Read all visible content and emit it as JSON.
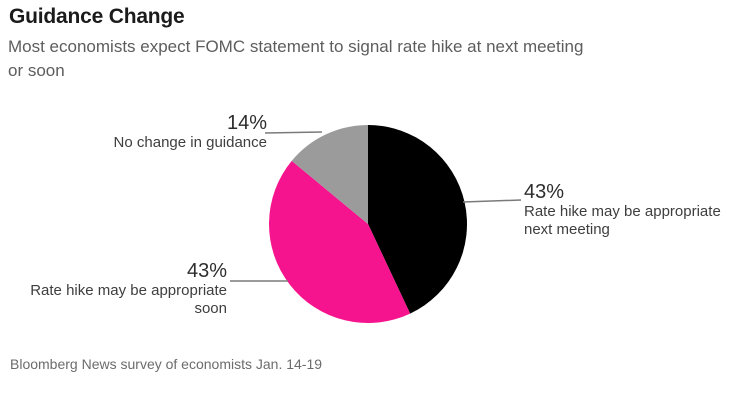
{
  "header": {
    "title": "Guidance Change",
    "subtitle_lines": [
      "Most economists expect FOMC statement to signal rate hike at next meeting",
      "or soon"
    ]
  },
  "chart_data": {
    "type": "pie",
    "title": "Guidance Change",
    "subtitle": "Most economists expect FOMC statement to signal rate hike at next meeting or soon",
    "unit": "percent",
    "start_angle_deg": 0,
    "direction": "clockwise",
    "slices": [
      {
        "id": "next-meeting",
        "label": "Rate hike may be appropriate next meeting",
        "value": 43,
        "color": "#000000"
      },
      {
        "id": "soon",
        "label": "Rate hike may be appropriate soon",
        "value": 43,
        "color": "#f5148e"
      },
      {
        "id": "no-change",
        "label": "No change in guidance",
        "value": 14,
        "color": "#9b9b9b"
      }
    ],
    "leader_line_color": "#7a7a7a",
    "source": "Bloomberg News survey of economists Jan. 14-19"
  },
  "callouts": {
    "no_change": {
      "pct": "14%",
      "line1": "No change in guidance"
    },
    "next_meeting": {
      "pct": "43%",
      "line1": "Rate hike may be appropriate",
      "line2": "next meeting"
    },
    "soon": {
      "pct": "43%",
      "line1": "Rate hike may be appropriate",
      "line2": "soon"
    }
  },
  "footer": {
    "source": "Bloomberg News survey of economists Jan. 14-19"
  }
}
